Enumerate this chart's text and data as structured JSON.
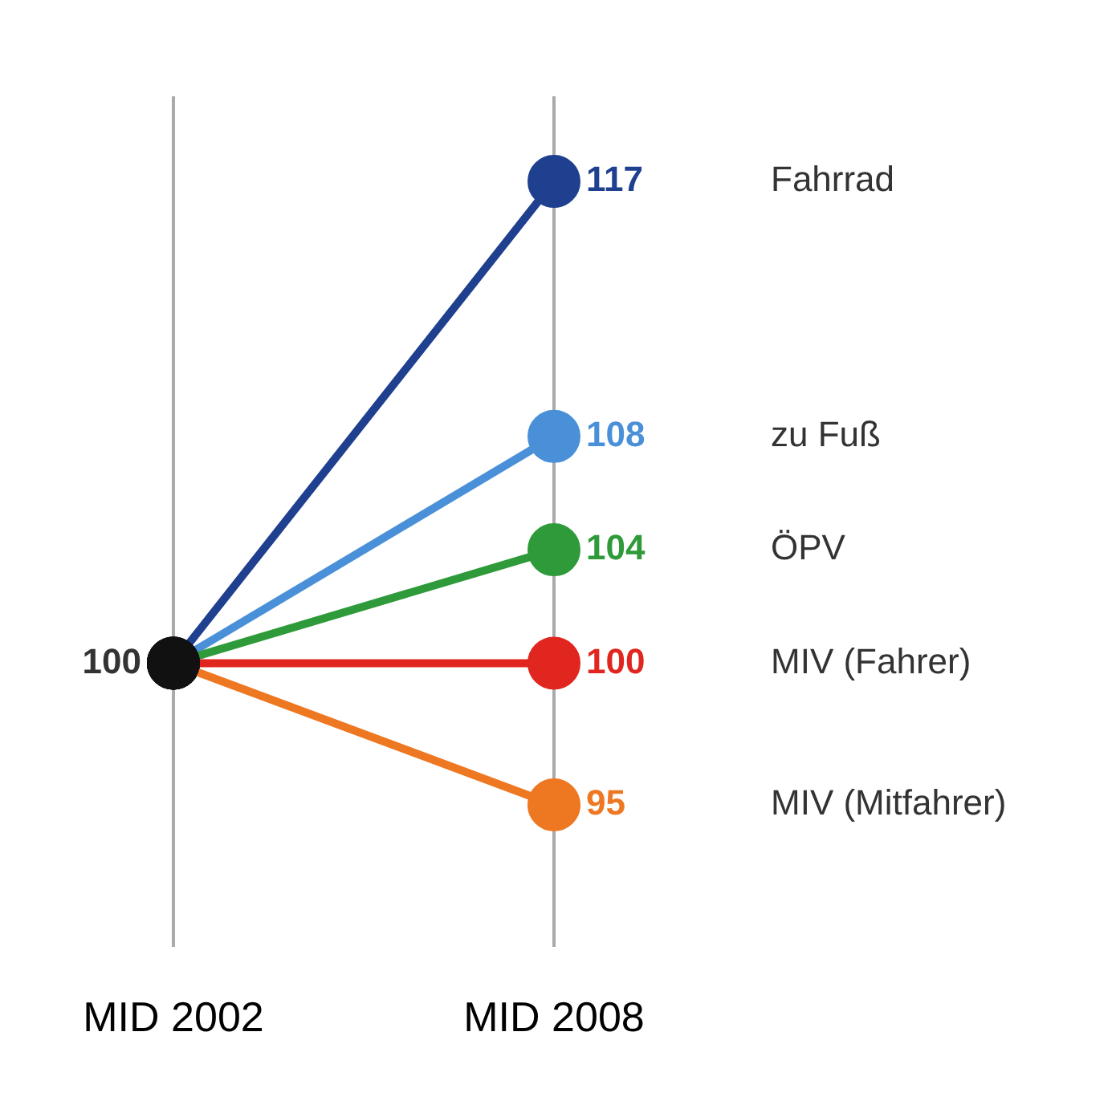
{
  "chart_data": {
    "type": "line",
    "categories": [
      "MID 2002",
      "MID 2008"
    ],
    "series": [
      {
        "name": "Fahrrad",
        "color": "#1f3f8f",
        "colors": [
          "#111111",
          "#1f3f8f"
        ],
        "values": [
          100,
          117
        ],
        "value_labels": [
          null,
          "117"
        ]
      },
      {
        "name": "zu Fuß",
        "color": "#4a90d9",
        "colors": [
          "#111111",
          "#4a90d9"
        ],
        "values": [
          100,
          108
        ],
        "value_labels": [
          null,
          "108"
        ]
      },
      {
        "name": "ÖPV",
        "color": "#2e9a3a",
        "colors": [
          "#111111",
          "#2e9a3a"
        ],
        "values": [
          100,
          104
        ],
        "value_labels": [
          null,
          "104"
        ]
      },
      {
        "name": "MIV (Fahrer)",
        "color": "#e0261e",
        "colors": [
          "#111111",
          "#e0261e"
        ],
        "values": [
          100,
          100
        ],
        "value_labels": [
          "100",
          "100"
        ]
      },
      {
        "name": "MIV (Mitfahrer)",
        "color": "#ee7722",
        "colors": [
          "#111111",
          "#ee7722"
        ],
        "values": [
          100,
          95
        ],
        "value_labels": [
          null,
          "95"
        ]
      }
    ],
    "grid": "x",
    "legend": false,
    "tick_labels": "x",
    "marker": "circle",
    "line_style": "solid"
  }
}
